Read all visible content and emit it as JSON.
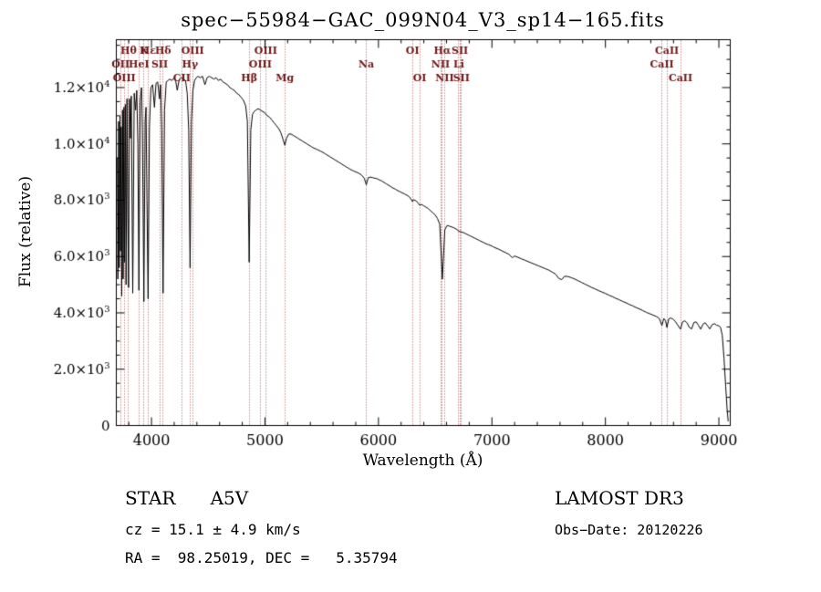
{
  "chart_data": {
    "type": "line",
    "title": "spec−55984−GAC_099N04_V3_sp14−165.fits",
    "xlabel": "Wavelength (Å)",
    "ylabel": "Flux (relative)",
    "xlim": [
      3690,
      9100
    ],
    "ylim": [
      0,
      13700
    ],
    "x_ticks": [
      4000,
      5000,
      6000,
      7000,
      8000,
      9000
    ],
    "x_minor_step": 200,
    "y_minor_step": 500,
    "y_ticks": [
      {
        "v": 0,
        "b": "0",
        "e": ""
      },
      {
        "v": 2000,
        "b": "2.0×10",
        "e": "3"
      },
      {
        "v": 4000,
        "b": "4.0×10",
        "e": "3"
      },
      {
        "v": 6000,
        "b": "6.0×10",
        "e": "3"
      },
      {
        "v": 8000,
        "b": "8.0×10",
        "e": "3"
      },
      {
        "v": 10000,
        "b": "1.0×10",
        "e": "4"
      },
      {
        "v": 12000,
        "b": "1.2×10",
        "e": "4"
      }
    ],
    "line_color": "#000000",
    "marker_line_color": "#aa5050",
    "marker_label_color": "#6b1515",
    "legend": "none",
    "grid": "off",
    "spectral_lines": [
      {
        "label": "Hθ",
        "wavelength": 3798,
        "row": 0
      },
      {
        "label": "K",
        "wavelength": 3933,
        "row": 0
      },
      {
        "label": "Hε",
        "wavelength": 3970,
        "row": 0
      },
      {
        "label": "Hδ",
        "wavelength": 4102,
        "row": 0
      },
      {
        "label": "OIII",
        "wavelength": 4363,
        "row": 0
      },
      {
        "label": "OIII",
        "wavelength": 5007,
        "row": 0
      },
      {
        "label": "OI",
        "wavelength": 6300,
        "row": 0
      },
      {
        "label": "Hα",
        "wavelength": 6563,
        "row": 0
      },
      {
        "label": "SII",
        "wavelength": 6717,
        "row": 0
      },
      {
        "label": "CaII",
        "wavelength": 8542,
        "row": 0
      },
      {
        "label": "OII",
        "wavelength": 3727,
        "row": 1
      },
      {
        "label": "HeI",
        "wavelength": 3889,
        "row": 1
      },
      {
        "label": "SII",
        "wavelength": 4072,
        "row": 1
      },
      {
        "label": "Hγ",
        "wavelength": 4340,
        "row": 1
      },
      {
        "label": "OIII",
        "wavelength": 4959,
        "row": 1
      },
      {
        "label": "Na",
        "wavelength": 5893,
        "row": 1
      },
      {
        "label": "NII",
        "wavelength": 6548,
        "row": 1
      },
      {
        "label": "Li",
        "wavelength": 6708,
        "row": 1
      },
      {
        "label": "CaII",
        "wavelength": 8498,
        "row": 1
      },
      {
        "label": "OIII",
        "wavelength": 3760,
        "row": 2
      },
      {
        "label": "CII",
        "wavelength": 4267,
        "row": 2
      },
      {
        "label": "Hβ",
        "wavelength": 4861,
        "row": 2
      },
      {
        "label": "Mg",
        "wavelength": 5175,
        "row": 2
      },
      {
        "label": "OI",
        "wavelength": 6363,
        "row": 2
      },
      {
        "label": "NII",
        "wavelength": 6583,
        "row": 2
      },
      {
        "label": "SII",
        "wavelength": 6731,
        "row": 2
      },
      {
        "label": "CaII",
        "wavelength": 8662,
        "row": 2
      }
    ],
    "spectrum": [
      [
        3700,
        9500
      ],
      [
        3704,
        5200
      ],
      [
        3710,
        10800
      ],
      [
        3716,
        5600
      ],
      [
        3722,
        11000
      ],
      [
        3727,
        6200
      ],
      [
        3733,
        10600
      ],
      [
        3738,
        4600
      ],
      [
        3745,
        11200
      ],
      [
        3750,
        5200
      ],
      [
        3757,
        11300
      ],
      [
        3762,
        5800
      ],
      [
        3770,
        11400
      ],
      [
        3776,
        5000
      ],
      [
        3784,
        11600
      ],
      [
        3790,
        8000
      ],
      [
        3798,
        4900
      ],
      [
        3806,
        11600
      ],
      [
        3815,
        10200
      ],
      [
        3822,
        11700
      ],
      [
        3835,
        4700
      ],
      [
        3848,
        11800
      ],
      [
        3860,
        11200
      ],
      [
        3870,
        11900
      ],
      [
        3880,
        10000
      ],
      [
        3889,
        4800
      ],
      [
        3900,
        11500
      ],
      [
        3912,
        12000
      ],
      [
        3920,
        10500
      ],
      [
        3933,
        4400
      ],
      [
        3944,
        10800
      ],
      [
        3952,
        11300
      ],
      [
        3960,
        8000
      ],
      [
        3970,
        4500
      ],
      [
        3982,
        10600
      ],
      [
        3995,
        12000
      ],
      [
        4010,
        12100
      ],
      [
        4026,
        11300
      ],
      [
        4040,
        12150
      ],
      [
        4055,
        12200
      ],
      [
        4070,
        11600
      ],
      [
        4080,
        12100
      ],
      [
        4090,
        10500
      ],
      [
        4102,
        4700
      ],
      [
        4115,
        11200
      ],
      [
        4130,
        12200
      ],
      [
        4145,
        12250
      ],
      [
        4160,
        12300
      ],
      [
        4180,
        12250
      ],
      [
        4200,
        12350
      ],
      [
        4215,
        12200
      ],
      [
        4227,
        11900
      ],
      [
        4245,
        12300
      ],
      [
        4260,
        12350
      ],
      [
        4280,
        12300
      ],
      [
        4300,
        12250
      ],
      [
        4315,
        11800
      ],
      [
        4328,
        10500
      ],
      [
        4340,
        5600
      ],
      [
        4352,
        10800
      ],
      [
        4365,
        11900
      ],
      [
        4380,
        12250
      ],
      [
        4395,
        12350
      ],
      [
        4410,
        12400
      ],
      [
        4430,
        12350
      ],
      [
        4450,
        12400
      ],
      [
        4471,
        12100
      ],
      [
        4490,
        12350
      ],
      [
        4510,
        12400
      ],
      [
        4530,
        12350
      ],
      [
        4550,
        12300
      ],
      [
        4570,
        12350
      ],
      [
        4590,
        12250
      ],
      [
        4610,
        12300
      ],
      [
        4630,
        12200
      ],
      [
        4650,
        12150
      ],
      [
        4670,
        12100
      ],
      [
        4690,
        12000
      ],
      [
        4710,
        11950
      ],
      [
        4730,
        11900
      ],
      [
        4750,
        11800
      ],
      [
        4770,
        11750
      ],
      [
        4790,
        11650
      ],
      [
        4810,
        11550
      ],
      [
        4830,
        11350
      ],
      [
        4845,
        10800
      ],
      [
        4861,
        5800
      ],
      [
        4875,
        10500
      ],
      [
        4890,
        11050
      ],
      [
        4905,
        11150
      ],
      [
        4920,
        11200
      ],
      [
        4940,
        11250
      ],
      [
        4960,
        11200
      ],
      [
        4980,
        11150
      ],
      [
        5000,
        11100
      ],
      [
        5020,
        11000
      ],
      [
        5040,
        10950
      ],
      [
        5060,
        10850
      ],
      [
        5080,
        10750
      ],
      [
        5100,
        10650
      ],
      [
        5120,
        10550
      ],
      [
        5140,
        10400
      ],
      [
        5160,
        10150
      ],
      [
        5175,
        9950
      ],
      [
        5190,
        10200
      ],
      [
        5210,
        10350
      ],
      [
        5230,
        10350
      ],
      [
        5250,
        10300
      ],
      [
        5270,
        10250
      ],
      [
        5290,
        10200
      ],
      [
        5310,
        10150
      ],
      [
        5330,
        10100
      ],
      [
        5350,
        10050
      ],
      [
        5370,
        10000
      ],
      [
        5390,
        9950
      ],
      [
        5410,
        9900
      ],
      [
        5430,
        9850
      ],
      [
        5450,
        9820
      ],
      [
        5470,
        9780
      ],
      [
        5490,
        9740
      ],
      [
        5510,
        9700
      ],
      [
        5530,
        9650
      ],
      [
        5550,
        9600
      ],
      [
        5570,
        9550
      ],
      [
        5590,
        9500
      ],
      [
        5610,
        9450
      ],
      [
        5630,
        9400
      ],
      [
        5650,
        9350
      ],
      [
        5670,
        9300
      ],
      [
        5690,
        9250
      ],
      [
        5710,
        9200
      ],
      [
        5730,
        9150
      ],
      [
        5750,
        9100
      ],
      [
        5770,
        9060
      ],
      [
        5790,
        9020
      ],
      [
        5810,
        8990
      ],
      [
        5830,
        8950
      ],
      [
        5850,
        8900
      ],
      [
        5875,
        8780
      ],
      [
        5893,
        8550
      ],
      [
        5910,
        8800
      ],
      [
        5930,
        8820
      ],
      [
        5950,
        8800
      ],
      [
        5970,
        8780
      ],
      [
        5990,
        8760
      ],
      [
        6010,
        8720
      ],
      [
        6030,
        8680
      ],
      [
        6050,
        8630
      ],
      [
        6070,
        8580
      ],
      [
        6090,
        8530
      ],
      [
        6110,
        8480
      ],
      [
        6130,
        8430
      ],
      [
        6150,
        8390
      ],
      [
        6170,
        8340
      ],
      [
        6190,
        8300
      ],
      [
        6210,
        8260
      ],
      [
        6230,
        8220
      ],
      [
        6250,
        8180
      ],
      [
        6270,
        8130
      ],
      [
        6290,
        8020
      ],
      [
        6300,
        7950
      ],
      [
        6310,
        8020
      ],
      [
        6330,
        7980
      ],
      [
        6350,
        7900
      ],
      [
        6363,
        7820
      ],
      [
        6380,
        7850
      ],
      [
        6400,
        7800
      ],
      [
        6420,
        7750
      ],
      [
        6440,
        7700
      ],
      [
        6460,
        7620
      ],
      [
        6480,
        7550
      ],
      [
        6500,
        7480
      ],
      [
        6520,
        7350
      ],
      [
        6540,
        7150
      ],
      [
        6563,
        5200
      ],
      [
        6585,
        6950
      ],
      [
        6605,
        7100
      ],
      [
        6625,
        7080
      ],
      [
        6645,
        7050
      ],
      [
        6665,
        7020
      ],
      [
        6685,
        6980
      ],
      [
        6708,
        6900
      ],
      [
        6731,
        6870
      ],
      [
        6750,
        6850
      ],
      [
        6770,
        6810
      ],
      [
        6790,
        6770
      ],
      [
        6810,
        6730
      ],
      [
        6830,
        6690
      ],
      [
        6850,
        6650
      ],
      [
        6870,
        6610
      ],
      [
        6890,
        6570
      ],
      [
        6910,
        6530
      ],
      [
        6930,
        6490
      ],
      [
        6950,
        6450
      ],
      [
        6970,
        6420
      ],
      [
        6990,
        6390
      ],
      [
        7010,
        6350
      ],
      [
        7030,
        6310
      ],
      [
        7060,
        6260
      ],
      [
        7090,
        6200
      ],
      [
        7120,
        6140
      ],
      [
        7150,
        6080
      ],
      [
        7180,
        5960
      ],
      [
        7200,
        6020
      ],
      [
        7230,
        5970
      ],
      [
        7260,
        5920
      ],
      [
        7290,
        5870
      ],
      [
        7320,
        5820
      ],
      [
        7350,
        5770
      ],
      [
        7380,
        5720
      ],
      [
        7410,
        5670
      ],
      [
        7440,
        5620
      ],
      [
        7470,
        5570
      ],
      [
        7500,
        5520
      ],
      [
        7530,
        5450
      ],
      [
        7560,
        5380
      ],
      [
        7590,
        5220
      ],
      [
        7615,
        5180
      ],
      [
        7640,
        5300
      ],
      [
        7670,
        5290
      ],
      [
        7700,
        5250
      ],
      [
        7730,
        5200
      ],
      [
        7760,
        5140
      ],
      [
        7790,
        5080
      ],
      [
        7820,
        5020
      ],
      [
        7850,
        4960
      ],
      [
        7880,
        4900
      ],
      [
        7910,
        4850
      ],
      [
        7940,
        4790
      ],
      [
        7970,
        4740
      ],
      [
        8000,
        4690
      ],
      [
        8030,
        4630
      ],
      [
        8060,
        4580
      ],
      [
        8090,
        4520
      ],
      [
        8120,
        4470
      ],
      [
        8150,
        4410
      ],
      [
        8180,
        4360
      ],
      [
        8210,
        4300
      ],
      [
        8240,
        4250
      ],
      [
        8270,
        4190
      ],
      [
        8300,
        4140
      ],
      [
        8330,
        4080
      ],
      [
        8360,
        4020
      ],
      [
        8390,
        3970
      ],
      [
        8420,
        3920
      ],
      [
        8450,
        3870
      ],
      [
        8475,
        3800
      ],
      [
        8498,
        3550
      ],
      [
        8515,
        3800
      ],
      [
        8530,
        3720
      ],
      [
        8542,
        3480
      ],
      [
        8558,
        3780
      ],
      [
        8575,
        3820
      ],
      [
        8595,
        3780
      ],
      [
        8615,
        3700
      ],
      [
        8635,
        3580
      ],
      [
        8662,
        3420
      ],
      [
        8680,
        3680
      ],
      [
        8700,
        3720
      ],
      [
        8720,
        3640
      ],
      [
        8740,
        3480
      ],
      [
        8760,
        3430
      ],
      [
        8780,
        3660
      ],
      [
        8800,
        3680
      ],
      [
        8820,
        3560
      ],
      [
        8840,
        3420
      ],
      [
        8860,
        3600
      ],
      [
        8880,
        3650
      ],
      [
        8900,
        3540
      ],
      [
        8920,
        3430
      ],
      [
        8940,
        3580
      ],
      [
        8960,
        3620
      ],
      [
        8980,
        3560
      ],
      [
        9000,
        3540
      ],
      [
        9015,
        3480
      ],
      [
        9030,
        3200
      ],
      [
        9045,
        2400
      ],
      [
        9060,
        1400
      ],
      [
        9072,
        600
      ],
      [
        9082,
        150
      ]
    ]
  },
  "footer": {
    "class_label": "STAR      A5V",
    "cz": "cz = 15.1 ± 4.9 km/s",
    "coords": "RA =  98.25019, DEC =   5.35794",
    "survey": "LAMOST DR3",
    "obs_date": "Obs−Date: 20120226"
  }
}
